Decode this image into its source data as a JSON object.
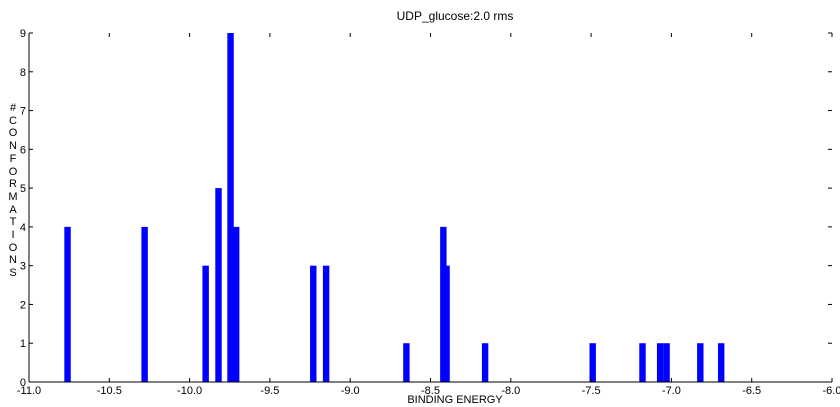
{
  "chart_data": {
    "type": "bar",
    "title": "UDP_glucose:2.0 rms",
    "xlabel": "BINDING ENERGY",
    "ylabel": "# CONFORMATIONS",
    "xlim": [
      -11.0,
      -6.0
    ],
    "ylim": [
      0,
      9
    ],
    "xticks": [
      "-11.0",
      "-10.5",
      "-10.0",
      "-9.5",
      "-9.0",
      "-8.5",
      "-8.0",
      "-7.5",
      "-7.0",
      "-6.5",
      "-6.0"
    ],
    "yticks": [
      "0",
      "1",
      "2",
      "3",
      "4",
      "5",
      "6",
      "7",
      "8",
      "9"
    ],
    "bar_width": 0.04,
    "bar_color": "#0000ff",
    "grid": false,
    "bars": [
      {
        "x": -10.76,
        "y": 4
      },
      {
        "x": -10.28,
        "y": 4
      },
      {
        "x": -9.9,
        "y": 3
      },
      {
        "x": -9.82,
        "y": 5
      },
      {
        "x": -9.745,
        "y": 9
      },
      {
        "x": -9.71,
        "y": 4
      },
      {
        "x": -9.23,
        "y": 3
      },
      {
        "x": -9.15,
        "y": 3
      },
      {
        "x": -8.65,
        "y": 1
      },
      {
        "x": -8.42,
        "y": 4
      },
      {
        "x": -8.4,
        "y": 3
      },
      {
        "x": -8.16,
        "y": 1
      },
      {
        "x": -7.49,
        "y": 1
      },
      {
        "x": -7.18,
        "y": 1
      },
      {
        "x": -7.07,
        "y": 1
      },
      {
        "x": -7.03,
        "y": 1
      },
      {
        "x": -6.82,
        "y": 1
      },
      {
        "x": -6.69,
        "y": 1
      }
    ]
  }
}
